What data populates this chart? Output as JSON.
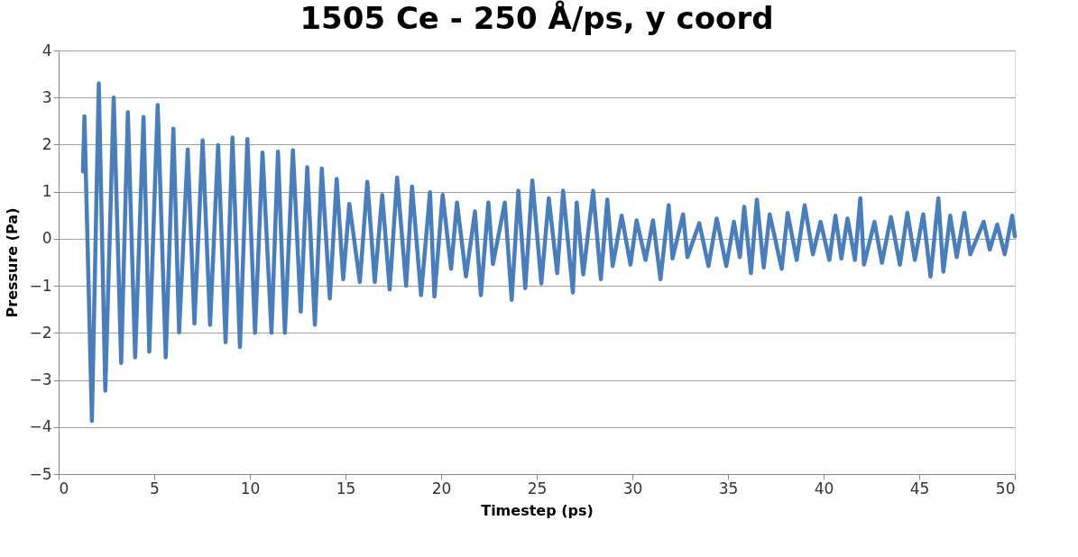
{
  "chart_data": {
    "type": "line",
    "title": "1505 Ce - 250 Å/ps, y coord",
    "xlabel": "Timestep (ps)",
    "ylabel": "Pressure (Pa)",
    "xlim": [
      0,
      50
    ],
    "xticks": [
      0,
      5,
      10,
      15,
      20,
      25,
      30,
      35,
      40,
      45,
      50
    ],
    "ylim": [
      -5,
      4
    ],
    "yticks": [
      -5,
      -4,
      -3,
      -2,
      -1,
      0,
      1,
      2,
      3,
      4
    ],
    "grid": "y",
    "marker": "none",
    "line_style": "solid",
    "series": [
      {
        "color": "#4a7ebb",
        "x": [
          1.27,
          1.35,
          1.74,
          2.1,
          2.44,
          2.88,
          3.27,
          3.62,
          4.0,
          4.44,
          4.74,
          5.18,
          5.6,
          6.0,
          6.3,
          6.75,
          7.1,
          7.53,
          7.92,
          8.34,
          8.73,
          9.09,
          9.48,
          9.87,
          10.27,
          10.66,
          11.13,
          11.47,
          11.83,
          12.25,
          12.66,
          13.0,
          13.4,
          13.76,
          14.18,
          14.54,
          14.88,
          15.2,
          15.75,
          16.14,
          16.53,
          16.92,
          17.31,
          17.7,
          18.17,
          18.48,
          18.95,
          19.42,
          19.65,
          20.08,
          20.52,
          20.83,
          21.3,
          21.77,
          22.08,
          22.47,
          22.71,
          23.33,
          23.69,
          24.04,
          24.4,
          24.77,
          25.24,
          25.63,
          26.07,
          26.38,
          26.89,
          27.09,
          27.43,
          27.95,
          28.35,
          28.69,
          28.97,
          29.44,
          29.9,
          30.22,
          30.69,
          31.08,
          31.47,
          31.9,
          32.1,
          32.65,
          32.88,
          33.5,
          33.98,
          34.41,
          34.91,
          35.31,
          35.62,
          35.85,
          36.2,
          36.51,
          36.87,
          37.18,
          37.81,
          38.12,
          38.59,
          39.01,
          39.44,
          39.84,
          40.3,
          40.62,
          40.93,
          41.25,
          41.64,
          41.92,
          42.11,
          42.66,
          43.05,
          43.52,
          43.99,
          44.38,
          44.77,
          45.21,
          45.59,
          46.0,
          46.26,
          46.62,
          46.96,
          47.36,
          47.67,
          48.37,
          48.69,
          49.08,
          49.47,
          49.86,
          50.0
        ],
        "values": [
          1.43,
          2.6,
          -3.87,
          3.3,
          -3.23,
          3.0,
          -2.64,
          2.69,
          -2.52,
          2.59,
          -2.4,
          2.84,
          -2.52,
          2.34,
          -1.99,
          1.9,
          -1.8,
          2.09,
          -1.83,
          1.99,
          -2.2,
          2.15,
          -2.3,
          2.12,
          -2.0,
          1.83,
          -2.0,
          1.85,
          -2.0,
          1.88,
          -1.55,
          1.52,
          -1.83,
          1.49,
          -1.27,
          1.27,
          -0.86,
          0.74,
          -0.92,
          1.21,
          -0.92,
          0.93,
          -1.08,
          1.3,
          -1.0,
          1.11,
          -1.2,
          0.99,
          -1.23,
          0.93,
          -0.64,
          0.77,
          -0.8,
          0.58,
          -1.2,
          0.77,
          -0.54,
          0.77,
          -1.3,
          1.02,
          -1.05,
          1.24,
          -0.95,
          0.86,
          -0.73,
          1.02,
          -1.14,
          0.77,
          -0.76,
          1.02,
          -0.86,
          0.83,
          -0.58,
          0.49,
          -0.55,
          0.39,
          -0.45,
          0.39,
          -0.86,
          0.71,
          -0.42,
          0.52,
          -0.39,
          0.33,
          -0.58,
          0.43,
          -0.58,
          0.36,
          -0.39,
          0.68,
          -0.73,
          0.83,
          -0.61,
          0.52,
          -0.64,
          0.55,
          -0.45,
          0.71,
          -0.33,
          0.36,
          -0.45,
          0.49,
          -0.42,
          0.43,
          -0.45,
          0.86,
          -0.55,
          0.36,
          -0.51,
          0.46,
          -0.55,
          0.55,
          -0.45,
          0.52,
          -0.8,
          0.86,
          -0.7,
          0.49,
          -0.39,
          0.55,
          -0.33,
          0.36,
          -0.23,
          0.3,
          -0.33,
          0.49,
          0.05
        ]
      }
    ]
  }
}
